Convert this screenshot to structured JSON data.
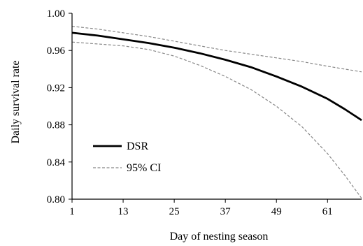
{
  "chart_data": {
    "type": "line",
    "title": "",
    "xlabel": "Day of nesting season",
    "ylabel": "Daily survival rate",
    "xlim": [
      1,
      69
    ],
    "ylim": [
      0.8,
      1.0
    ],
    "x_ticks": [
      1,
      13,
      25,
      37,
      49,
      61
    ],
    "x_tick_labels": [
      "1",
      "13",
      "25",
      "37",
      "49",
      "61"
    ],
    "y_ticks": [
      0.8,
      0.84,
      0.88,
      0.92,
      0.96,
      1.0
    ],
    "y_tick_labels": [
      "0.80",
      "0.84",
      "0.88",
      "0.92",
      "0.96",
      "1.00"
    ],
    "grid": false,
    "legend_position": "lower-left",
    "series": [
      {
        "name": "DSR",
        "style": "solid",
        "color": "#000000",
        "x": [
          1,
          7,
          13,
          19,
          25,
          31,
          37,
          43,
          49,
          55,
          61,
          65,
          69
        ],
        "y": [
          0.979,
          0.976,
          0.972,
          0.968,
          0.963,
          0.957,
          0.95,
          0.942,
          0.932,
          0.921,
          0.908,
          0.897,
          0.885
        ]
      },
      {
        "name": "95% CI",
        "style": "dashed",
        "color": "#888888",
        "x": [
          1,
          7,
          13,
          19,
          25,
          31,
          37,
          43,
          49,
          55,
          61,
          65,
          69
        ],
        "y": [
          0.986,
          0.983,
          0.979,
          0.975,
          0.97,
          0.965,
          0.96,
          0.956,
          0.952,
          0.948,
          0.943,
          0.94,
          0.937
        ]
      },
      {
        "name": "95% CI",
        "style": "dashed",
        "color": "#888888",
        "x": [
          1,
          7,
          13,
          19,
          25,
          31,
          37,
          43,
          49,
          55,
          61,
          65,
          69
        ],
        "y": [
          0.969,
          0.967,
          0.965,
          0.961,
          0.954,
          0.944,
          0.932,
          0.918,
          0.9,
          0.878,
          0.849,
          0.826,
          0.801
        ]
      }
    ],
    "legend": [
      {
        "label": "DSR",
        "style": "solid",
        "color": "#000000"
      },
      {
        "label": "95% CI",
        "style": "dashed",
        "color": "#888888"
      }
    ]
  }
}
